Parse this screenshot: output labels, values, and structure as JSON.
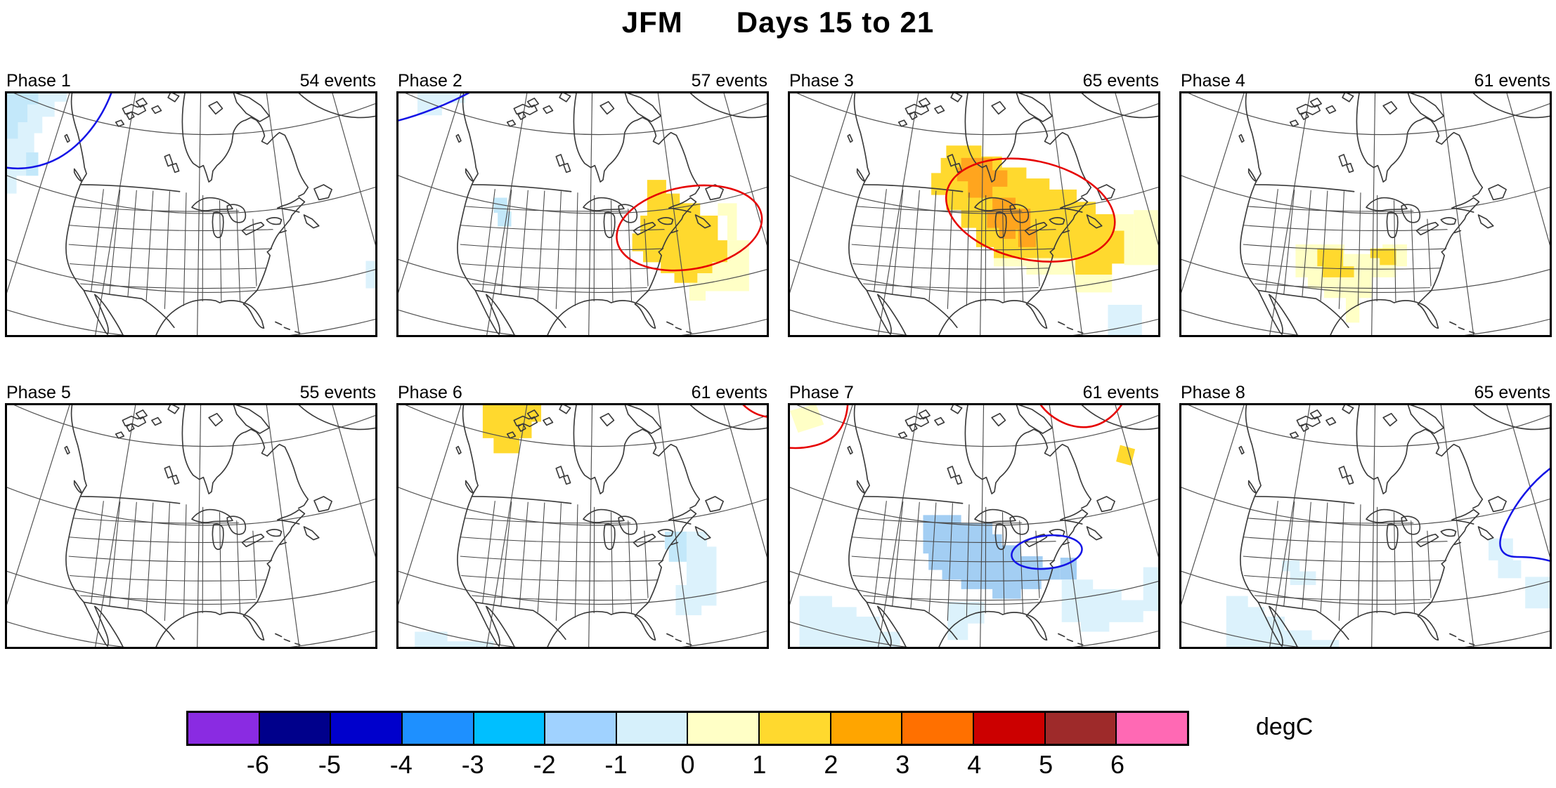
{
  "title": "JFM      Days 15 to 21",
  "panels": [
    {
      "label": "Phase 1",
      "events": "54 events"
    },
    {
      "label": "Phase 2",
      "events": "57 events"
    },
    {
      "label": "Phase 3",
      "events": "65 events"
    },
    {
      "label": "Phase 4",
      "events": "61 events"
    },
    {
      "label": "Phase 5",
      "events": "55 events"
    },
    {
      "label": "Phase 6",
      "events": "61 events"
    },
    {
      "label": "Phase 7",
      "events": "61 events"
    },
    {
      "label": "Phase 8",
      "events": "65 events"
    }
  ],
  "colorbar": {
    "unit_label": "degC",
    "tick_labels": [
      "-6",
      "-5",
      "-4",
      "-3",
      "-2",
      "-1",
      "0",
      "1",
      "2",
      "3",
      "4",
      "5",
      "6"
    ],
    "colors": [
      "#8A2BE2",
      "#00008B",
      "#0000CC",
      "#1E90FF",
      "#00BFFF",
      "#A0D2FF",
      "#D6F0FB",
      "#FFFFC6",
      "#FFD92E",
      "#FFA500",
      "#FF7000",
      "#CC0000",
      "#9E2A2A",
      "#FF69B4"
    ]
  },
  "contour_colors": {
    "positive": "#E60000",
    "negative": "#1414E6"
  },
  "chart_data": {
    "type": "heatmap",
    "title": "JFM Days 15 to 21",
    "subtitle": "Composite surface temperature anomaly maps of North America by MJO phase",
    "unit": "degC",
    "colorbar": {
      "bin_edges": [
        -6,
        -5,
        -4,
        -3,
        -2,
        -1,
        0,
        1,
        2,
        3,
        4,
        5,
        6
      ],
      "colors": [
        "#8A2BE2",
        "#00008B",
        "#0000CC",
        "#1E90FF",
        "#00BFFF",
        "#A0D2FF",
        "#D6F0FB",
        "#FFFFC6",
        "#FFD92E",
        "#FFA500",
        "#FF7000",
        "#CC0000",
        "#9E2A2A",
        "#FF69B4"
      ]
    },
    "panels": [
      {
        "phase": 1,
        "events": 54,
        "anomalies": [
          {
            "region": "Gulf of Alaska / British Columbia coast (top-left corner)",
            "value_degC": -0.5,
            "contour": "blue"
          }
        ]
      },
      {
        "phase": 2,
        "events": 57,
        "anomalies": [
          {
            "region": "Great Lakes / Northeast US / western Atlantic",
            "value_degC": 1.5,
            "contour": "red"
          },
          {
            "region": "Idaho / Montana",
            "value_degC": -0.8
          },
          {
            "region": "northwest corner ocean",
            "value_degC": -0.5,
            "contour": "blue"
          }
        ]
      },
      {
        "phase": 3,
        "events": 65,
        "anomalies": [
          {
            "region": "central Canada / Great Lakes / Midwest / Northeast US",
            "value_degC": 1.5,
            "contour": "red"
          },
          {
            "region": "Manitoba-Ontario and Great Lakes core",
            "value_degC": 2.5
          },
          {
            "region": "southeast fringe",
            "value_degC": 0.5
          },
          {
            "region": "southeast Atlantic corner",
            "value_degC": -0.5
          }
        ]
      },
      {
        "phase": 4,
        "events": 61,
        "anomalies": [
          {
            "region": "southern Great Plains (NM/TX/OK)",
            "value_degC": 0.5
          },
          {
            "region": "Oklahoma-Kansas and Ohio valley cells",
            "value_degC": 1.5
          }
        ]
      },
      {
        "phase": 5,
        "events": 55,
        "anomalies": []
      },
      {
        "phase": 6,
        "events": 61,
        "anomalies": [
          {
            "region": "Northwest Territories (Great Bear Lake)",
            "value_degC": 1.5
          },
          {
            "region": "New England coast cell",
            "value_degC": -1.5
          },
          {
            "region": "western Atlantic",
            "value_degC": -0.5
          },
          {
            "region": "southwest corner ocean",
            "value_degC": -0.5
          },
          {
            "region": "top-right corner",
            "contour": "red"
          }
        ]
      },
      {
        "phase": 7,
        "events": 61,
        "anomalies": [
          {
            "region": "central US / Ohio valley / mid-Atlantic",
            "value_degC": -1.5,
            "contour": "blue"
          },
          {
            "region": "Mexico / Gulf coast / southeast Atlantic",
            "value_degC": -0.5
          },
          {
            "region": "Arctic top edge",
            "contour": "red"
          },
          {
            "region": "top-left corner cell",
            "value_degC": 0.5
          },
          {
            "region": "Labrador Sea cell",
            "value_degC": 1.5
          }
        ]
      },
      {
        "phase": 8,
        "events": 65,
        "anomalies": [
          {
            "region": "Baja California / western Mexico",
            "value_degC": -0.5
          },
          {
            "region": "Utah / Colorado",
            "value_degC": -0.5
          },
          {
            "region": "northwest Atlantic",
            "value_degC": -0.5,
            "contour": "blue"
          }
        ]
      }
    ]
  }
}
